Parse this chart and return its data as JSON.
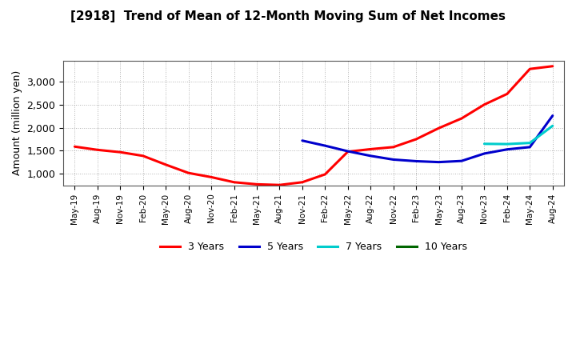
{
  "title": "[2918]  Trend of Mean of 12-Month Moving Sum of Net Incomes",
  "ylabel": "Amount (million yen)",
  "background_color": "#ffffff",
  "grid_color": "#aaaaaa",
  "yticks": [
    1000,
    1500,
    2000,
    2500,
    3000
  ],
  "x_tick_labels": [
    "May-19",
    "Aug-19",
    "Nov-19",
    "Feb-20",
    "May-20",
    "Aug-20",
    "Nov-20",
    "Feb-21",
    "May-21",
    "Aug-21",
    "Nov-21",
    "Feb-22",
    "May-22",
    "Aug-22",
    "Nov-22",
    "Feb-23",
    "May-23",
    "Aug-23",
    "Nov-23",
    "Feb-24",
    "May-24",
    "Aug-24"
  ],
  "y_3y": [
    1590,
    1520,
    1470,
    1390,
    1200,
    1020,
    930,
    820,
    775,
    760,
    820,
    990,
    1480,
    1535,
    1580,
    1750,
    1990,
    2200,
    2500,
    2730,
    3270,
    3330
  ],
  "y_5y": [
    null,
    null,
    null,
    null,
    null,
    null,
    null,
    null,
    null,
    null,
    1720,
    1610,
    1490,
    1390,
    1310,
    1275,
    1255,
    1280,
    1440,
    1530,
    1580,
    2260
  ],
  "y_7y": [
    null,
    null,
    null,
    null,
    null,
    null,
    null,
    null,
    null,
    null,
    null,
    null,
    null,
    null,
    null,
    null,
    null,
    null,
    1650,
    1645,
    1670,
    2040
  ],
  "y_10y": [
    null,
    null,
    null,
    null,
    null,
    null,
    null,
    null,
    null,
    null,
    null,
    null,
    null,
    null,
    null,
    null,
    null,
    null,
    null,
    null,
    null,
    null
  ],
  "legend_entries": [
    "3 Years",
    "5 Years",
    "7 Years",
    "10 Years"
  ],
  "legend_colors": [
    "#ff0000",
    "#0000cc",
    "#00cccc",
    "#006600"
  ]
}
